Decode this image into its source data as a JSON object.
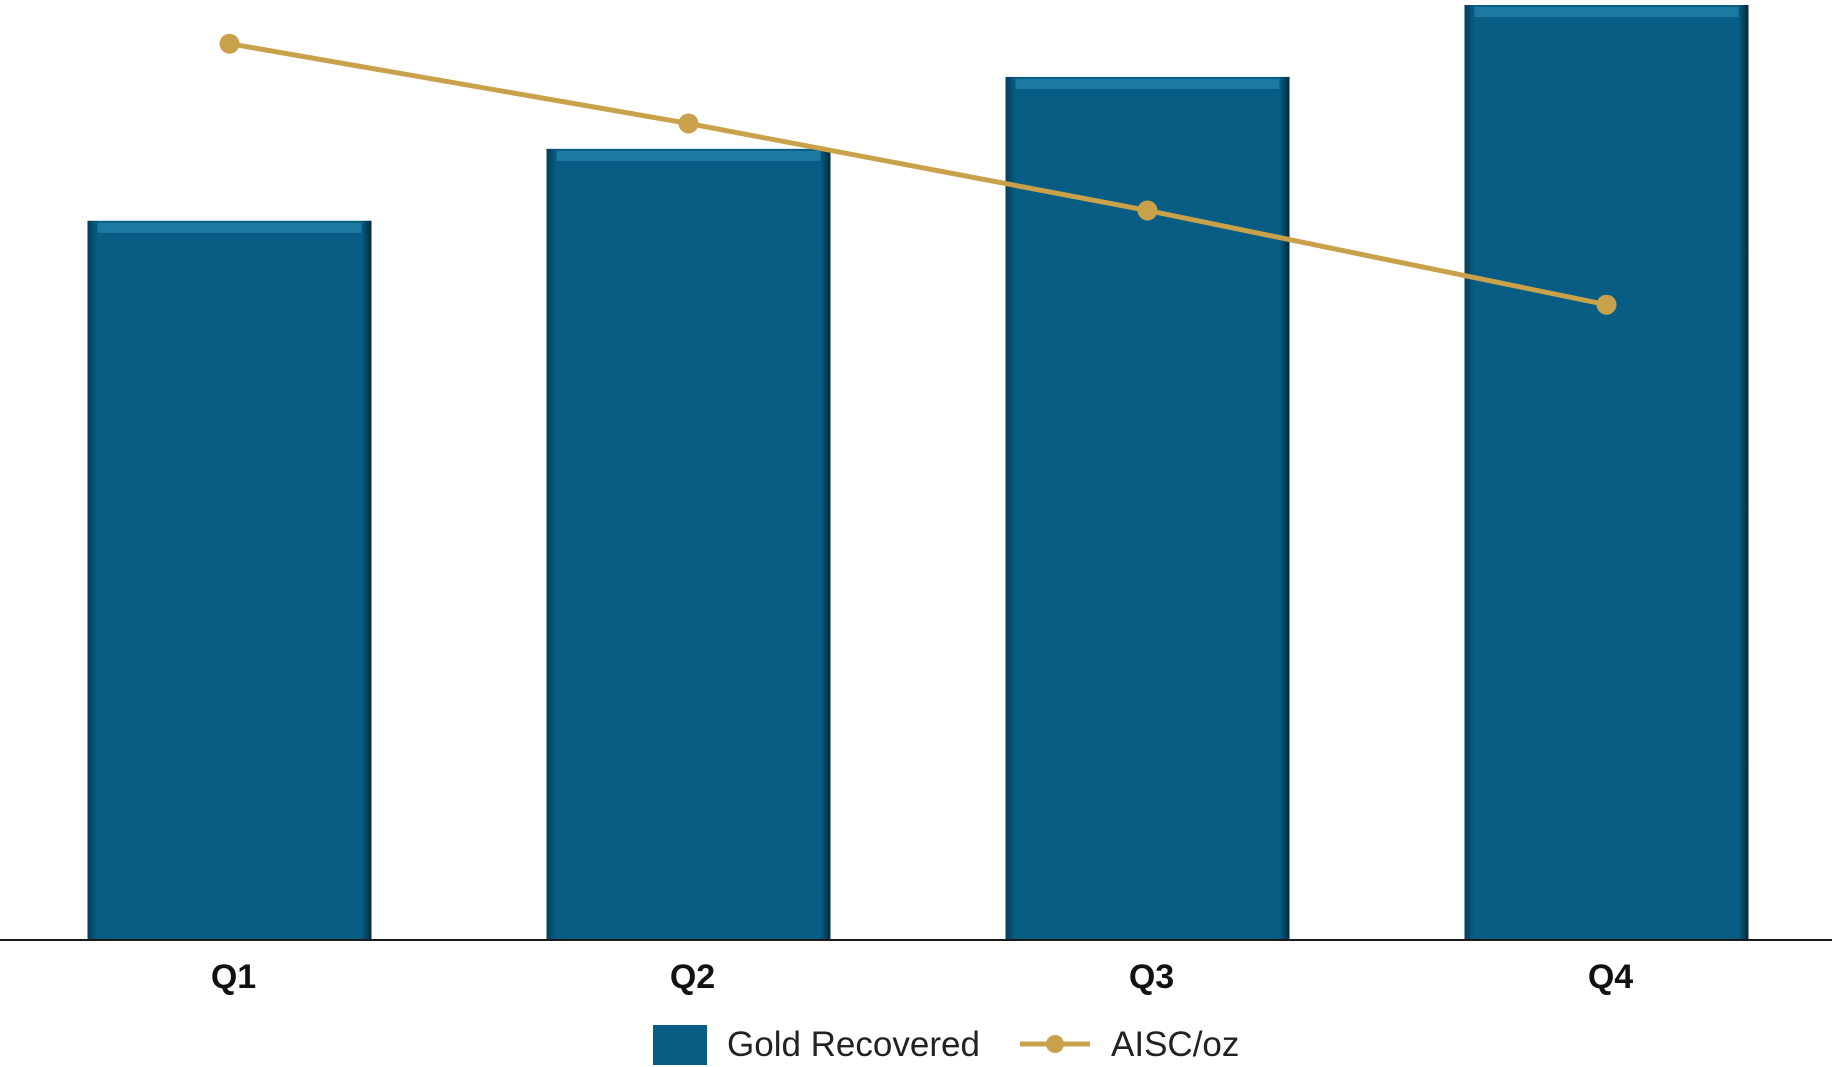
{
  "chart_data": {
    "type": "bar",
    "title": "",
    "xlabel": "",
    "ylabel": "",
    "categories": [
      "Q1",
      "Q2",
      "Q3",
      "Q4"
    ],
    "ylim": [
      0,
      130
    ],
    "grid": false,
    "legend_placement": "bottom-center",
    "series": [
      {
        "name": "Gold Recovered",
        "kind": "bar",
        "color": "#075d84",
        "values": [
          100,
          110,
          120,
          130
        ]
      },
      {
        "name": "AISC/oz",
        "kind": "line",
        "color": "#c9a14a",
        "values": [
          125,
          114,
          102,
          89
        ]
      }
    ]
  }
}
